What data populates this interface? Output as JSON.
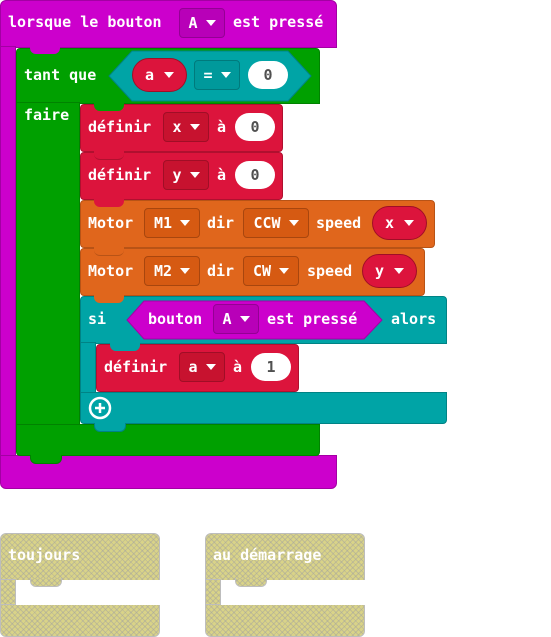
{
  "event_block": {
    "prefix": "lorsque le bouton",
    "button": "A",
    "suffix": "est pressé"
  },
  "while_block": {
    "label": "tant que",
    "condition": {
      "var": "a",
      "op": "=",
      "value": "0"
    },
    "do_label": "faire"
  },
  "set_x": {
    "label": "définir",
    "var": "x",
    "to": "à",
    "value": "0"
  },
  "set_y": {
    "label": "définir",
    "var": "y",
    "to": "à",
    "value": "0"
  },
  "motor1": {
    "label": "Motor",
    "motor": "M1",
    "dir_label": "dir",
    "dir": "CCW",
    "speed_label": "speed",
    "speed_var": "x"
  },
  "motor2": {
    "label": "Motor",
    "motor": "M2",
    "dir_label": "dir",
    "dir": "CW",
    "speed_label": "speed",
    "speed_var": "y"
  },
  "if_block": {
    "label": "si",
    "condition": {
      "prefix": "bouton",
      "button": "A",
      "suffix": "est pressé"
    },
    "then_label": "alors"
  },
  "set_a": {
    "label": "définir",
    "var": "a",
    "to": "à",
    "value": "1"
  },
  "forever_block": {
    "label": "toujours"
  },
  "on_start_block": {
    "label": "au démarrage"
  },
  "colors": {
    "event": "#cc00cc",
    "loops": "#00a000",
    "variables": "#dc143c",
    "motor": "#e0661c",
    "logic": "#00a4a6",
    "disabled": "#d9d388"
  },
  "icons": {
    "add": "plus-circle-icon",
    "dropdown": "caret-down-icon"
  }
}
